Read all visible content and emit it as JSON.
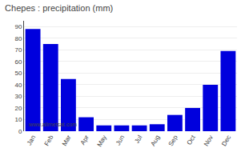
{
  "chart_data": {
    "type": "bar",
    "title": "Chepes : precipitation (mm)",
    "categories": [
      "Jan",
      "Feb",
      "Mar",
      "Apr",
      "May",
      "Jun",
      "Jul",
      "Aug",
      "Sep",
      "Oct",
      "Nov",
      "Dec"
    ],
    "values": [
      88,
      75,
      45,
      12,
      5,
      5,
      5,
      6,
      14,
      20,
      40,
      69
    ],
    "color": "#0000dd",
    "ylim": [
      0,
      95
    ],
    "yticks": [
      0,
      10,
      20,
      30,
      40,
      50,
      60,
      70,
      80,
      90
    ],
    "grid": true,
    "annotations": [
      "www.allmetsat.com"
    ]
  }
}
